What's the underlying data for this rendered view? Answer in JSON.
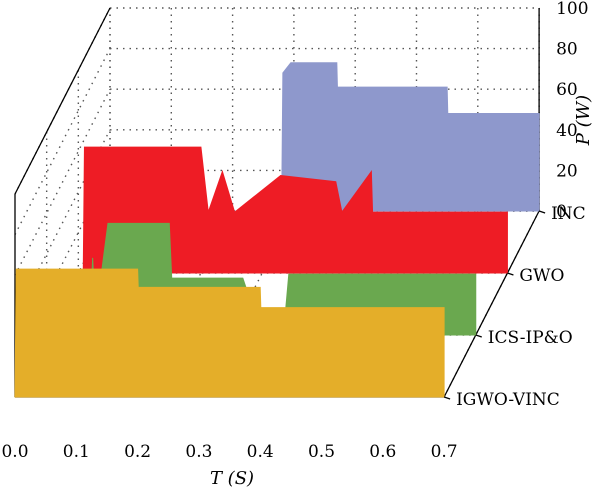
{
  "chart_data": {
    "type": "area",
    "projection": "3d-waterfall",
    "x": {
      "ticks": [
        0.0,
        0.1,
        0.2,
        0.3,
        0.4,
        0.5,
        0.6,
        0.7
      ],
      "tick_labels": [
        "0.0",
        "0.1",
        "0.2",
        "0.3",
        "0.4",
        "0.5",
        "0.6",
        "0.7"
      ],
      "label": "T (S)",
      "range": [
        0,
        0.7
      ]
    },
    "y": {
      "ticks": [
        0,
        20,
        40,
        60,
        80,
        100
      ],
      "tick_labels": [
        "0",
        "20",
        "40",
        "60",
        "80",
        "100"
      ],
      "label": "P (W)",
      "range": [
        0,
        100
      ]
    },
    "depth_categories": [
      "INC",
      "GWO",
      "ICS-IP&O",
      "IGWO-VINC"
    ],
    "grid": true,
    "series": [
      {
        "name": "INC",
        "color": "#8e98cc",
        "values": [
          [
            0.0,
            0
          ],
          [
            0.28,
            0
          ],
          [
            0.282,
            68
          ],
          [
            0.295,
            73
          ],
          [
            0.37,
            73
          ],
          [
            0.371,
            61
          ],
          [
            0.55,
            61
          ],
          [
            0.551,
            48
          ],
          [
            0.7,
            48
          ]
        ]
      },
      {
        "name": "GWO",
        "color": "#ee1c25",
        "values": [
          [
            0.0,
            0
          ],
          [
            0.008,
            0
          ],
          [
            0.01,
            62
          ],
          [
            0.2,
            62
          ],
          [
            0.212,
            30
          ],
          [
            0.235,
            50
          ],
          [
            0.255,
            30
          ],
          [
            0.33,
            48
          ],
          [
            0.42,
            45
          ],
          [
            0.43,
            30
          ],
          [
            0.478,
            50
          ],
          [
            0.48,
            30
          ],
          [
            0.7,
            30
          ]
        ]
      },
      {
        "name": "ICS-IP&O",
        "color": "#6aa84f",
        "values": [
          [
            0.0,
            0
          ],
          [
            0.07,
            0
          ],
          [
            0.075,
            38
          ],
          [
            0.08,
            9
          ],
          [
            0.1,
            55
          ],
          [
            0.2,
            55
          ],
          [
            0.204,
            28
          ],
          [
            0.32,
            28
          ],
          [
            0.34,
            10
          ],
          [
            0.39,
            13
          ],
          [
            0.395,
            30
          ],
          [
            0.7,
            30
          ]
        ]
      },
      {
        "name": "IGWO-VINC",
        "color": "#e4ae29",
        "values": [
          [
            0.0,
            0
          ],
          [
            0.002,
            63
          ],
          [
            0.2,
            63
          ],
          [
            0.201,
            54
          ],
          [
            0.4,
            54
          ],
          [
            0.401,
            44
          ],
          [
            0.7,
            44
          ]
        ]
      }
    ]
  }
}
